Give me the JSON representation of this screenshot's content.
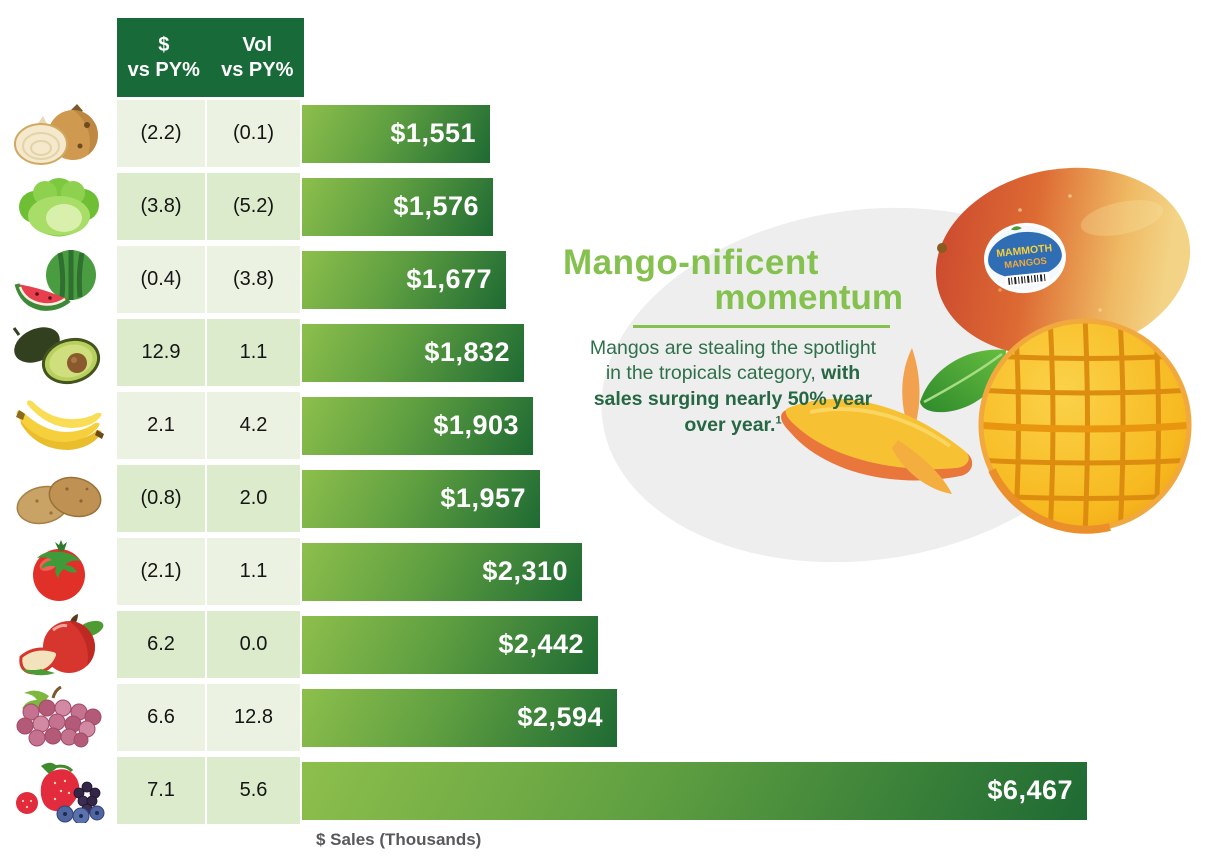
{
  "page": {
    "background": "#ffffff"
  },
  "table": {
    "header": {
      "col1_line1": "$",
      "col1_line2": "vs PY%",
      "col2_line1": "Vol",
      "col2_line2": "vs PY%"
    }
  },
  "rows": [
    {
      "icon": "onion-icon",
      "dollar_vs_py": "(2.2)",
      "vol_vs_py": "(0.1)",
      "sales_label": "$1,551"
    },
    {
      "icon": "lettuce-icon",
      "dollar_vs_py": "(3.8)",
      "vol_vs_py": "(5.2)",
      "sales_label": "$1,576"
    },
    {
      "icon": "watermelon-icon",
      "dollar_vs_py": "(0.4)",
      "vol_vs_py": "(3.8)",
      "sales_label": "$1,677"
    },
    {
      "icon": "avocado-icon",
      "dollar_vs_py": "12.9",
      "vol_vs_py": "1.1",
      "sales_label": "$1,832"
    },
    {
      "icon": "banana-icon",
      "dollar_vs_py": "2.1",
      "vol_vs_py": "4.2",
      "sales_label": "$1,903"
    },
    {
      "icon": "potato-icon",
      "dollar_vs_py": "(0.8)",
      "vol_vs_py": "2.0",
      "sales_label": "$1,957"
    },
    {
      "icon": "tomato-icon",
      "dollar_vs_py": "(2.1)",
      "vol_vs_py": "1.1",
      "sales_label": "$2,310"
    },
    {
      "icon": "apple-icon",
      "dollar_vs_py": "6.2",
      "vol_vs_py": "0.0",
      "sales_label": "$2,442"
    },
    {
      "icon": "grapes-icon",
      "dollar_vs_py": "6.6",
      "vol_vs_py": "12.8",
      "sales_label": "$2,594"
    },
    {
      "icon": "berries-icon",
      "dollar_vs_py": "7.1",
      "vol_vs_py": "5.6",
      "sales_label": "$6,467"
    }
  ],
  "axis": {
    "xlabel": "$ Sales (Thousands)"
  },
  "callout": {
    "title_line1": "Mango-nificent",
    "title_line2": "momentum",
    "lines": [
      {
        "normal": "Mangos are stealing the spotlight",
        "bold": ""
      },
      {
        "normal": "in the tropicals category, ",
        "bold": "with"
      },
      {
        "normal": "",
        "bold": "sales surging nearly 50% year"
      },
      {
        "normal": "",
        "bold": "over year."
      }
    ],
    "footnote_marker": "1"
  },
  "sticker": {
    "line1": "MAMMOTH",
    "line2": "MANGOS"
  },
  "colors": {
    "header_green": "#186a38",
    "bar_green_light": "#8dbf4c",
    "bar_green_dark": "#1e6a33",
    "row_light": "#ebf2e1",
    "row_dark": "#dcebcb",
    "headline_green": "#84c14f",
    "body_green": "#2e7049",
    "axis_label_gray": "#58595b"
  },
  "chart_data": {
    "type": "bar",
    "orientation": "horizontal",
    "categories": [
      "onions",
      "lettuce",
      "watermelon",
      "avocados",
      "bananas",
      "potatoes",
      "tomatoes",
      "apples",
      "grapes",
      "berries"
    ],
    "values": [
      1551,
      1576,
      1677,
      1832,
      1903,
      1957,
      2310,
      2442,
      2594,
      6467
    ],
    "bar_labels": [
      "$1,551",
      "$1,576",
      "$1,677",
      "$1,832",
      "$1,903",
      "$1,957",
      "$2,310",
      "$2,442",
      "$2,594",
      "$6,467"
    ],
    "series": [
      {
        "name": "$ vs PY%",
        "values": [
          "(2.2)",
          "(3.8)",
          "(0.4)",
          "12.9",
          "2.1",
          "(0.8)",
          "(2.1)",
          "6.2",
          "6.6",
          "7.1"
        ]
      },
      {
        "name": "Vol vs PY%",
        "values": [
          "(0.1)",
          "(5.2)",
          "(3.8)",
          "1.1",
          "4.2",
          "2.0",
          "1.1",
          "0.0",
          "12.8",
          "5.6"
        ]
      },
      {
        "name": "$ Sales (Thousands)",
        "values": [
          1551,
          1576,
          1677,
          1832,
          1903,
          1957,
          2310,
          2442,
          2594,
          6467
        ]
      }
    ],
    "xlabel": "$ Sales (Thousands)",
    "xlim": [
      0,
      6467
    ],
    "grid": false,
    "legend": "none",
    "value_labels_inside_bars": true
  }
}
